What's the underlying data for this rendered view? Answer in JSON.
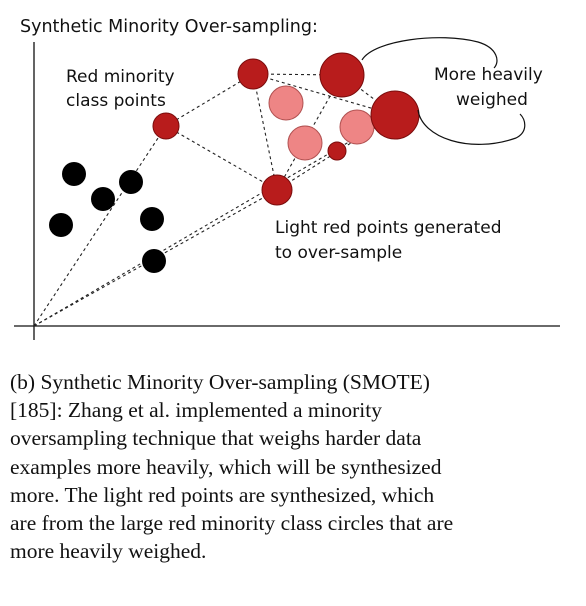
{
  "diagram": {
    "title": "Synthetic Minority Over-sampling:",
    "label_red_minority_1": "Red minority",
    "label_red_minority_2": "class points",
    "label_heavily_1": "More heavily",
    "label_heavily_2": "weighed",
    "label_light_1": "Light red points generated",
    "label_light_2": "to over-sample"
  },
  "caption": {
    "line1": "(b) Synthetic Minority Over-sampling (SMOTE)",
    "line2": "[185]: Zhang et al. implemented a minority",
    "line3": "oversampling technique that weighs harder data",
    "line4": "examples more heavily, which will be synthesized",
    "line5": "more. The light red points are synthesized, which",
    "line6": "are from the large red minority class circles that are",
    "line7": "more heavily weighed."
  },
  "colors": {
    "minority_red": "#b81c1c",
    "synthetic_light_red": "#ee8585",
    "majority_black": "#000000"
  }
}
